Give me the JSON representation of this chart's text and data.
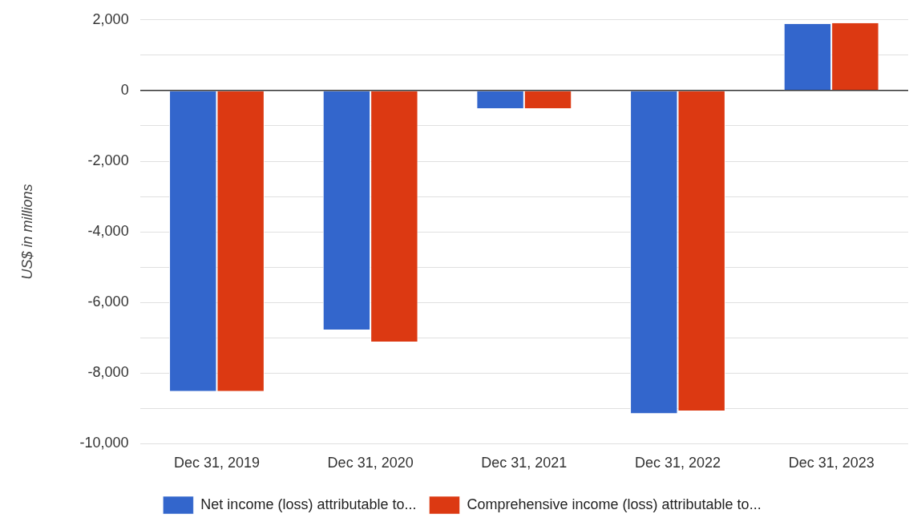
{
  "chart_data": {
    "type": "bar",
    "ylabel": "US$ in millions",
    "categories": [
      "Dec 31, 2019",
      "Dec 31, 2020",
      "Dec 31, 2021",
      "Dec 31, 2022",
      "Dec 31, 2023"
    ],
    "series": [
      {
        "name": "Net income (loss) attributable to...",
        "color": "#3366cc",
        "values": [
          -8510,
          -6770,
          -500,
          -9140,
          1890
        ]
      },
      {
        "name": "Comprehensive income (loss) attributable to...",
        "color": "#dc3912",
        "values": [
          -8510,
          -7110,
          -500,
          -9060,
          1910
        ]
      }
    ],
    "ylim": [
      -10000,
      2000
    ],
    "yticks": [
      {
        "value": -10000,
        "label": "-10,000"
      },
      {
        "value": -9000,
        "label": null
      },
      {
        "value": -8000,
        "label": "-8,000"
      },
      {
        "value": -7000,
        "label": null
      },
      {
        "value": -6000,
        "label": "-6,000"
      },
      {
        "value": -5000,
        "label": null
      },
      {
        "value": -4000,
        "label": "-4,000"
      },
      {
        "value": -3000,
        "label": null
      },
      {
        "value": -2000,
        "label": "-2,000"
      },
      {
        "value": -1000,
        "label": null
      },
      {
        "value": 0,
        "label": "0"
      },
      {
        "value": 1000,
        "label": null
      },
      {
        "value": 2000,
        "label": "2,000"
      }
    ],
    "grid": "y",
    "legend": "bottom"
  }
}
